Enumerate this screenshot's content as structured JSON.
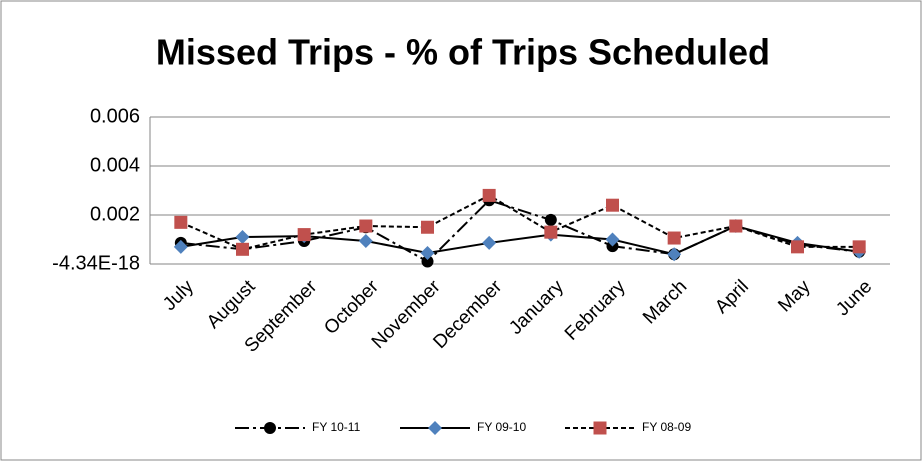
{
  "chart_data": {
    "type": "line",
    "title": "Missed Trips - % of Trips Scheduled",
    "categories": [
      "July",
      "August",
      "September",
      "October",
      "November",
      "December",
      "January",
      "February",
      "March",
      "April",
      "May",
      "June"
    ],
    "series": [
      {
        "name": "FY 10-11",
        "color": "#000000",
        "dash": "dashdot",
        "marker": "circle",
        "values": [
          0.00086,
          0.0006,
          0.00094,
          0.0015,
          0.0001,
          0.0026,
          0.0018,
          0.00073,
          0.0004,
          0.00155,
          0.0008,
          0.0005
        ]
      },
      {
        "name": "FY 09-10",
        "color": "#4f81bd",
        "line_color": "#000000",
        "dash": "solid",
        "marker": "diamond",
        "values": [
          0.0007,
          0.0011,
          0.00114,
          0.00094,
          0.00045,
          0.00086,
          0.0012,
          0.001,
          0.0004,
          0.00155,
          0.00086,
          0.0005
        ]
      },
      {
        "name": "FY 08-09",
        "color": "#c0504d",
        "line_color": "#000000",
        "dash": "dash",
        "marker": "square",
        "values": [
          0.0017,
          0.0006,
          0.0012,
          0.00155,
          0.0015,
          0.0028,
          0.0013,
          0.0024,
          0.00106,
          0.00155,
          0.0007,
          0.0007
        ]
      }
    ],
    "ylim": [
      -4.34e-18,
      0.006
    ],
    "yticks": [
      {
        "value": -4.34e-18,
        "label": "-4.34E-18"
      },
      0.002,
      0.004,
      0.006
    ],
    "grid": true,
    "legend": "bottom"
  }
}
